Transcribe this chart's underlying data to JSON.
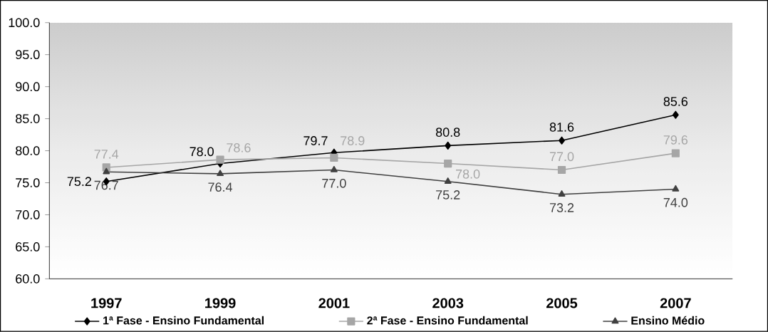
{
  "chart_data": {
    "type": "line",
    "categories": [
      "1997",
      "1999",
      "2001",
      "2003",
      "2005",
      "2007"
    ],
    "series": [
      {
        "name": "1ª Fase - Ensino Fundamental",
        "color": "#000000",
        "marker": "diamond",
        "values": [
          75.2,
          78.0,
          79.7,
          80.8,
          81.6,
          85.6
        ],
        "value_labels": [
          "75.2",
          "78.0",
          "79.7",
          "80.8",
          "81.6",
          "85.6"
        ]
      },
      {
        "name": "2ª Fase - Ensino Fundamental",
        "color": "#a6a6a6",
        "marker": "square",
        "values": [
          77.4,
          78.6,
          78.9,
          78.0,
          77.0,
          79.6
        ],
        "value_labels": [
          "77.4",
          "78.6",
          "78.9",
          "78.0",
          "77.0",
          "79.6"
        ]
      },
      {
        "name": "Ensino Médio",
        "color": "#404040",
        "marker": "triangle",
        "values": [
          76.7,
          76.4,
          77.0,
          75.2,
          73.2,
          74.0
        ],
        "value_labels": [
          "76.7",
          "76.4",
          "77.0",
          "75.2",
          "73.2",
          "74.0"
        ]
      }
    ],
    "ylim": [
      60,
      100
    ],
    "yticks": [
      {
        "value": 60,
        "label": "60.0"
      },
      {
        "value": 65,
        "label": "65.0"
      },
      {
        "value": 70,
        "label": "70.0"
      },
      {
        "value": 75,
        "label": "75.0"
      },
      {
        "value": 80,
        "label": "80.0"
      },
      {
        "value": 85,
        "label": "85.0"
      },
      {
        "value": 90,
        "label": "90.0"
      },
      {
        "value": 95,
        "label": "95.0"
      },
      {
        "value": 100,
        "label": "100.0"
      }
    ],
    "legend": "bottom",
    "grid": false,
    "line_style": "solid"
  }
}
